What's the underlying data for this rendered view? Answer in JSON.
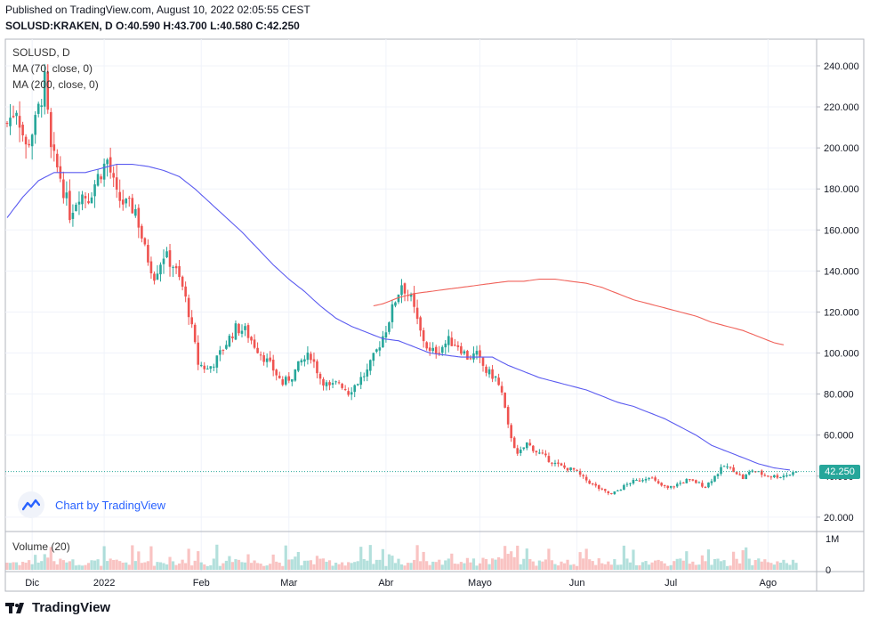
{
  "header": {
    "published": "Published on TradingView.com, August 10, 2022 02:05:55 CEST",
    "ohlc": "SOLUSD:KRAKEN, D  O:40.590  H:43.700  L:40.580  C:42.250"
  },
  "legend": {
    "symbol": "SOLUSD, D",
    "ma70": "MA (70, close, 0)",
    "ma200": "MA (200, close, 0)",
    "volume": "Volume (20)"
  },
  "watermark": {
    "text": "Chart by TradingView"
  },
  "footer": {
    "brand": "TradingView"
  },
  "colors": {
    "up": "#26a69a",
    "down": "#ef5350",
    "ma70": "#5b5bf0",
    "ma200": "#f0625a",
    "grid": "#f0f3fa"
  },
  "chart_data": {
    "type": "candlestick",
    "title": "SOLUSD, D",
    "last_price": 42.25,
    "last_price_label": "42.250",
    "ylim": [
      13,
      253
    ],
    "y_ticks": [
      20,
      40,
      60,
      80,
      100,
      120,
      140,
      160,
      180,
      200,
      220,
      240
    ],
    "y_tick_labels": [
      "20.000",
      "40.000",
      "60.000",
      "80.000",
      "100.000",
      "120.000",
      "140.000",
      "160.000",
      "180.000",
      "200.000",
      "220.000",
      "240.000"
    ],
    "x_labels": [
      {
        "day": 8,
        "label": "Dic"
      },
      {
        "day": 31,
        "label": "2022"
      },
      {
        "day": 62,
        "label": "Feb"
      },
      {
        "day": 90,
        "label": "Mar"
      },
      {
        "day": 121,
        "label": "Abr"
      },
      {
        "day": 151,
        "label": "Mayo"
      },
      {
        "day": 182,
        "label": "Jun"
      },
      {
        "day": 212,
        "label": "Jul"
      },
      {
        "day": 243,
        "label": "Ago"
      }
    ],
    "volume_ticks": [
      {
        "value": 1000000,
        "label": "1M"
      },
      {
        "value": 0,
        "label": "0"
      }
    ],
    "volume_max": 1150000,
    "total_days": 253,
    "price_anchors": [
      [
        0,
        212
      ],
      [
        3,
        220
      ],
      [
        6,
        200
      ],
      [
        9,
        212
      ],
      [
        12,
        232
      ],
      [
        14,
        198
      ],
      [
        17,
        186
      ],
      [
        20,
        168
      ],
      [
        23,
        178
      ],
      [
        26,
        176
      ],
      [
        29,
        186
      ],
      [
        32,
        194
      ],
      [
        35,
        176
      ],
      [
        38,
        172
      ],
      [
        41,
        170
      ],
      [
        44,
        150
      ],
      [
        47,
        138
      ],
      [
        50,
        148
      ],
      [
        53,
        143
      ],
      [
        56,
        132
      ],
      [
        58,
        120
      ],
      [
        61,
        95
      ],
      [
        64,
        92
      ],
      [
        67,
        97
      ],
      [
        70,
        105
      ],
      [
        73,
        112
      ],
      [
        76,
        111
      ],
      [
        79,
        104
      ],
      [
        82,
        98
      ],
      [
        85,
        92
      ],
      [
        88,
        85
      ],
      [
        91,
        89
      ],
      [
        94,
        96
      ],
      [
        97,
        99
      ],
      [
        100,
        88
      ],
      [
        103,
        83
      ],
      [
        106,
        86
      ],
      [
        109,
        81
      ],
      [
        112,
        86
      ],
      [
        115,
        91
      ],
      [
        118,
        101
      ],
      [
        121,
        112
      ],
      [
        124,
        126
      ],
      [
        126,
        134
      ],
      [
        129,
        126
      ],
      [
        132,
        110
      ],
      [
        135,
        100
      ],
      [
        138,
        102
      ],
      [
        141,
        106
      ],
      [
        144,
        104
      ],
      [
        147,
        98
      ],
      [
        150,
        99
      ],
      [
        153,
        91
      ],
      [
        156,
        88
      ],
      [
        158,
        80
      ],
      [
        160,
        64
      ],
      [
        163,
        50
      ],
      [
        166,
        56
      ],
      [
        169,
        52
      ],
      [
        172,
        49
      ],
      [
        175,
        46
      ],
      [
        178,
        44
      ],
      [
        181,
        43
      ],
      [
        184,
        39
      ],
      [
        187,
        36
      ],
      [
        190,
        33
      ],
      [
        193,
        31
      ],
      [
        196,
        34
      ],
      [
        199,
        37
      ],
      [
        202,
        38
      ],
      [
        205,
        40
      ],
      [
        208,
        36
      ],
      [
        211,
        34
      ],
      [
        214,
        36
      ],
      [
        217,
        38
      ],
      [
        220,
        37
      ],
      [
        223,
        35
      ],
      [
        226,
        40
      ],
      [
        229,
        45
      ],
      [
        232,
        43
      ],
      [
        235,
        39
      ],
      [
        238,
        43
      ],
      [
        241,
        41
      ],
      [
        244,
        40
      ],
      [
        247,
        40
      ],
      [
        250,
        41
      ],
      [
        252,
        42.25
      ]
    ],
    "ma70_anchors": [
      [
        0,
        166
      ],
      [
        5,
        176
      ],
      [
        10,
        184
      ],
      [
        15,
        188
      ],
      [
        20,
        188
      ],
      [
        25,
        188
      ],
      [
        30,
        190
      ],
      [
        35,
        192
      ],
      [
        40,
        192
      ],
      [
        45,
        191
      ],
      [
        50,
        189
      ],
      [
        55,
        186
      ],
      [
        60,
        180
      ],
      [
        65,
        173
      ],
      [
        70,
        166
      ],
      [
        75,
        159
      ],
      [
        80,
        151
      ],
      [
        85,
        143
      ],
      [
        90,
        136
      ],
      [
        95,
        130
      ],
      [
        100,
        123
      ],
      [
        105,
        117
      ],
      [
        110,
        113
      ],
      [
        115,
        110
      ],
      [
        120,
        107
      ],
      [
        125,
        106
      ],
      [
        130,
        103
      ],
      [
        135,
        100
      ],
      [
        140,
        99
      ],
      [
        145,
        98
      ],
      [
        150,
        98
      ],
      [
        155,
        98
      ],
      [
        160,
        94
      ],
      [
        165,
        91
      ],
      [
        170,
        88
      ],
      [
        175,
        86
      ],
      [
        180,
        84
      ],
      [
        185,
        82
      ],
      [
        190,
        79
      ],
      [
        195,
        76
      ],
      [
        200,
        74
      ],
      [
        205,
        71
      ],
      [
        210,
        68
      ],
      [
        215,
        64
      ],
      [
        220,
        60
      ],
      [
        225,
        55
      ],
      [
        230,
        52
      ],
      [
        235,
        49
      ],
      [
        240,
        46
      ],
      [
        245,
        44
      ],
      [
        250,
        43
      ]
    ],
    "ma200_anchors": [
      [
        117,
        123
      ],
      [
        120,
        124
      ],
      [
        125,
        127
      ],
      [
        130,
        129
      ],
      [
        135,
        130
      ],
      [
        140,
        131
      ],
      [
        145,
        132
      ],
      [
        150,
        133
      ],
      [
        155,
        134
      ],
      [
        160,
        135
      ],
      [
        165,
        135
      ],
      [
        170,
        136
      ],
      [
        175,
        136
      ],
      [
        180,
        135
      ],
      [
        185,
        134
      ],
      [
        190,
        132
      ],
      [
        195,
        129
      ],
      [
        200,
        126
      ],
      [
        205,
        124
      ],
      [
        210,
        122
      ],
      [
        215,
        120
      ],
      [
        220,
        118
      ],
      [
        225,
        115
      ],
      [
        230,
        113
      ],
      [
        235,
        111
      ],
      [
        240,
        108
      ],
      [
        245,
        105
      ],
      [
        248,
        104
      ]
    ]
  }
}
